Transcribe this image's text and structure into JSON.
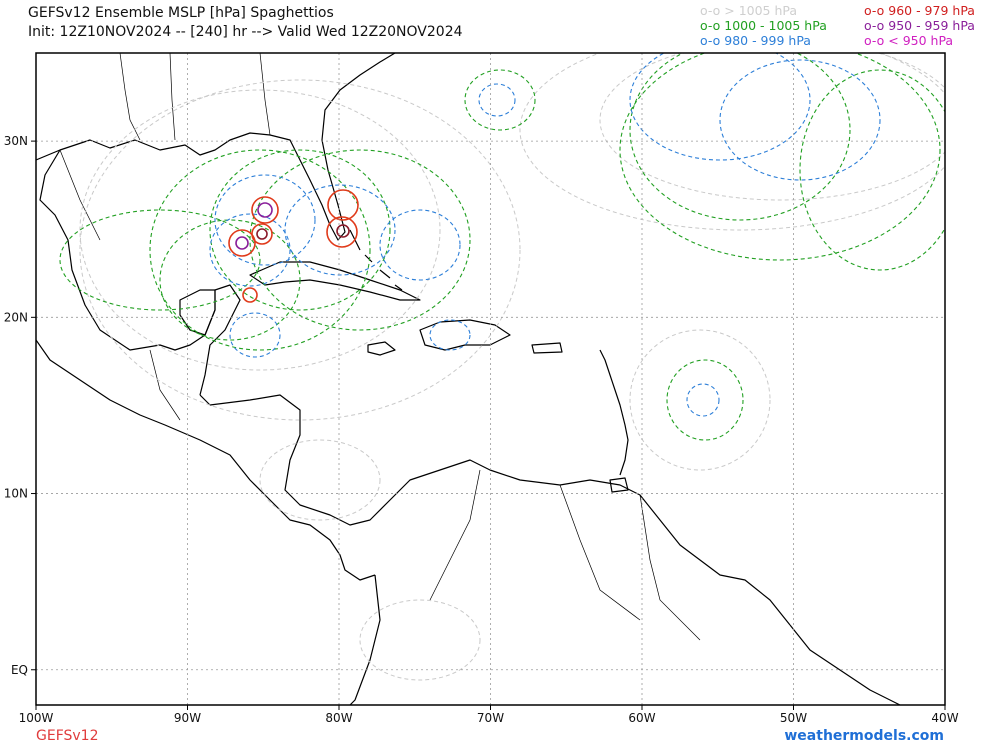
{
  "title": {
    "line1": "GEFSv12 Ensemble MSLP [hPa] Spaghettios",
    "line2": "Init: 12Z10NOV2024 -- [240] hr --> Valid Wed 12Z20NOV2024"
  },
  "legend": {
    "left": [
      {
        "label": "o-o > 1005 hPa",
        "color": "#cfcfcf"
      },
      {
        "label": "o-o 1000 - 1005 hPa",
        "color": "#22a022"
      },
      {
        "label": "o-o 980 - 999 hPa",
        "color": "#2d7fd8"
      }
    ],
    "right": [
      {
        "label": "o-o 960 - 979 hPa",
        "color": "#d01f1f"
      },
      {
        "label": "o-o 950 - 959 hPa",
        "color": "#8a1f9a"
      },
      {
        "label": "o-o < 950 hPa",
        "color": "#d020c0"
      }
    ]
  },
  "axes": {
    "x_labels": [
      "100W",
      "90W",
      "80W",
      "70W",
      "60W",
      "50W",
      "40W"
    ],
    "x_values": [
      -100,
      -90,
      -80,
      -70,
      -60,
      -50,
      -40
    ],
    "y_labels": [
      "EQ",
      "10N",
      "20N",
      "30N"
    ],
    "y_values": [
      0,
      10,
      20,
      30
    ],
    "lon_range": [
      -100,
      -40
    ],
    "lat_range": [
      -2,
      35
    ]
  },
  "footer": {
    "model": "GEFSv12",
    "site": "weathermodels.com"
  }
}
